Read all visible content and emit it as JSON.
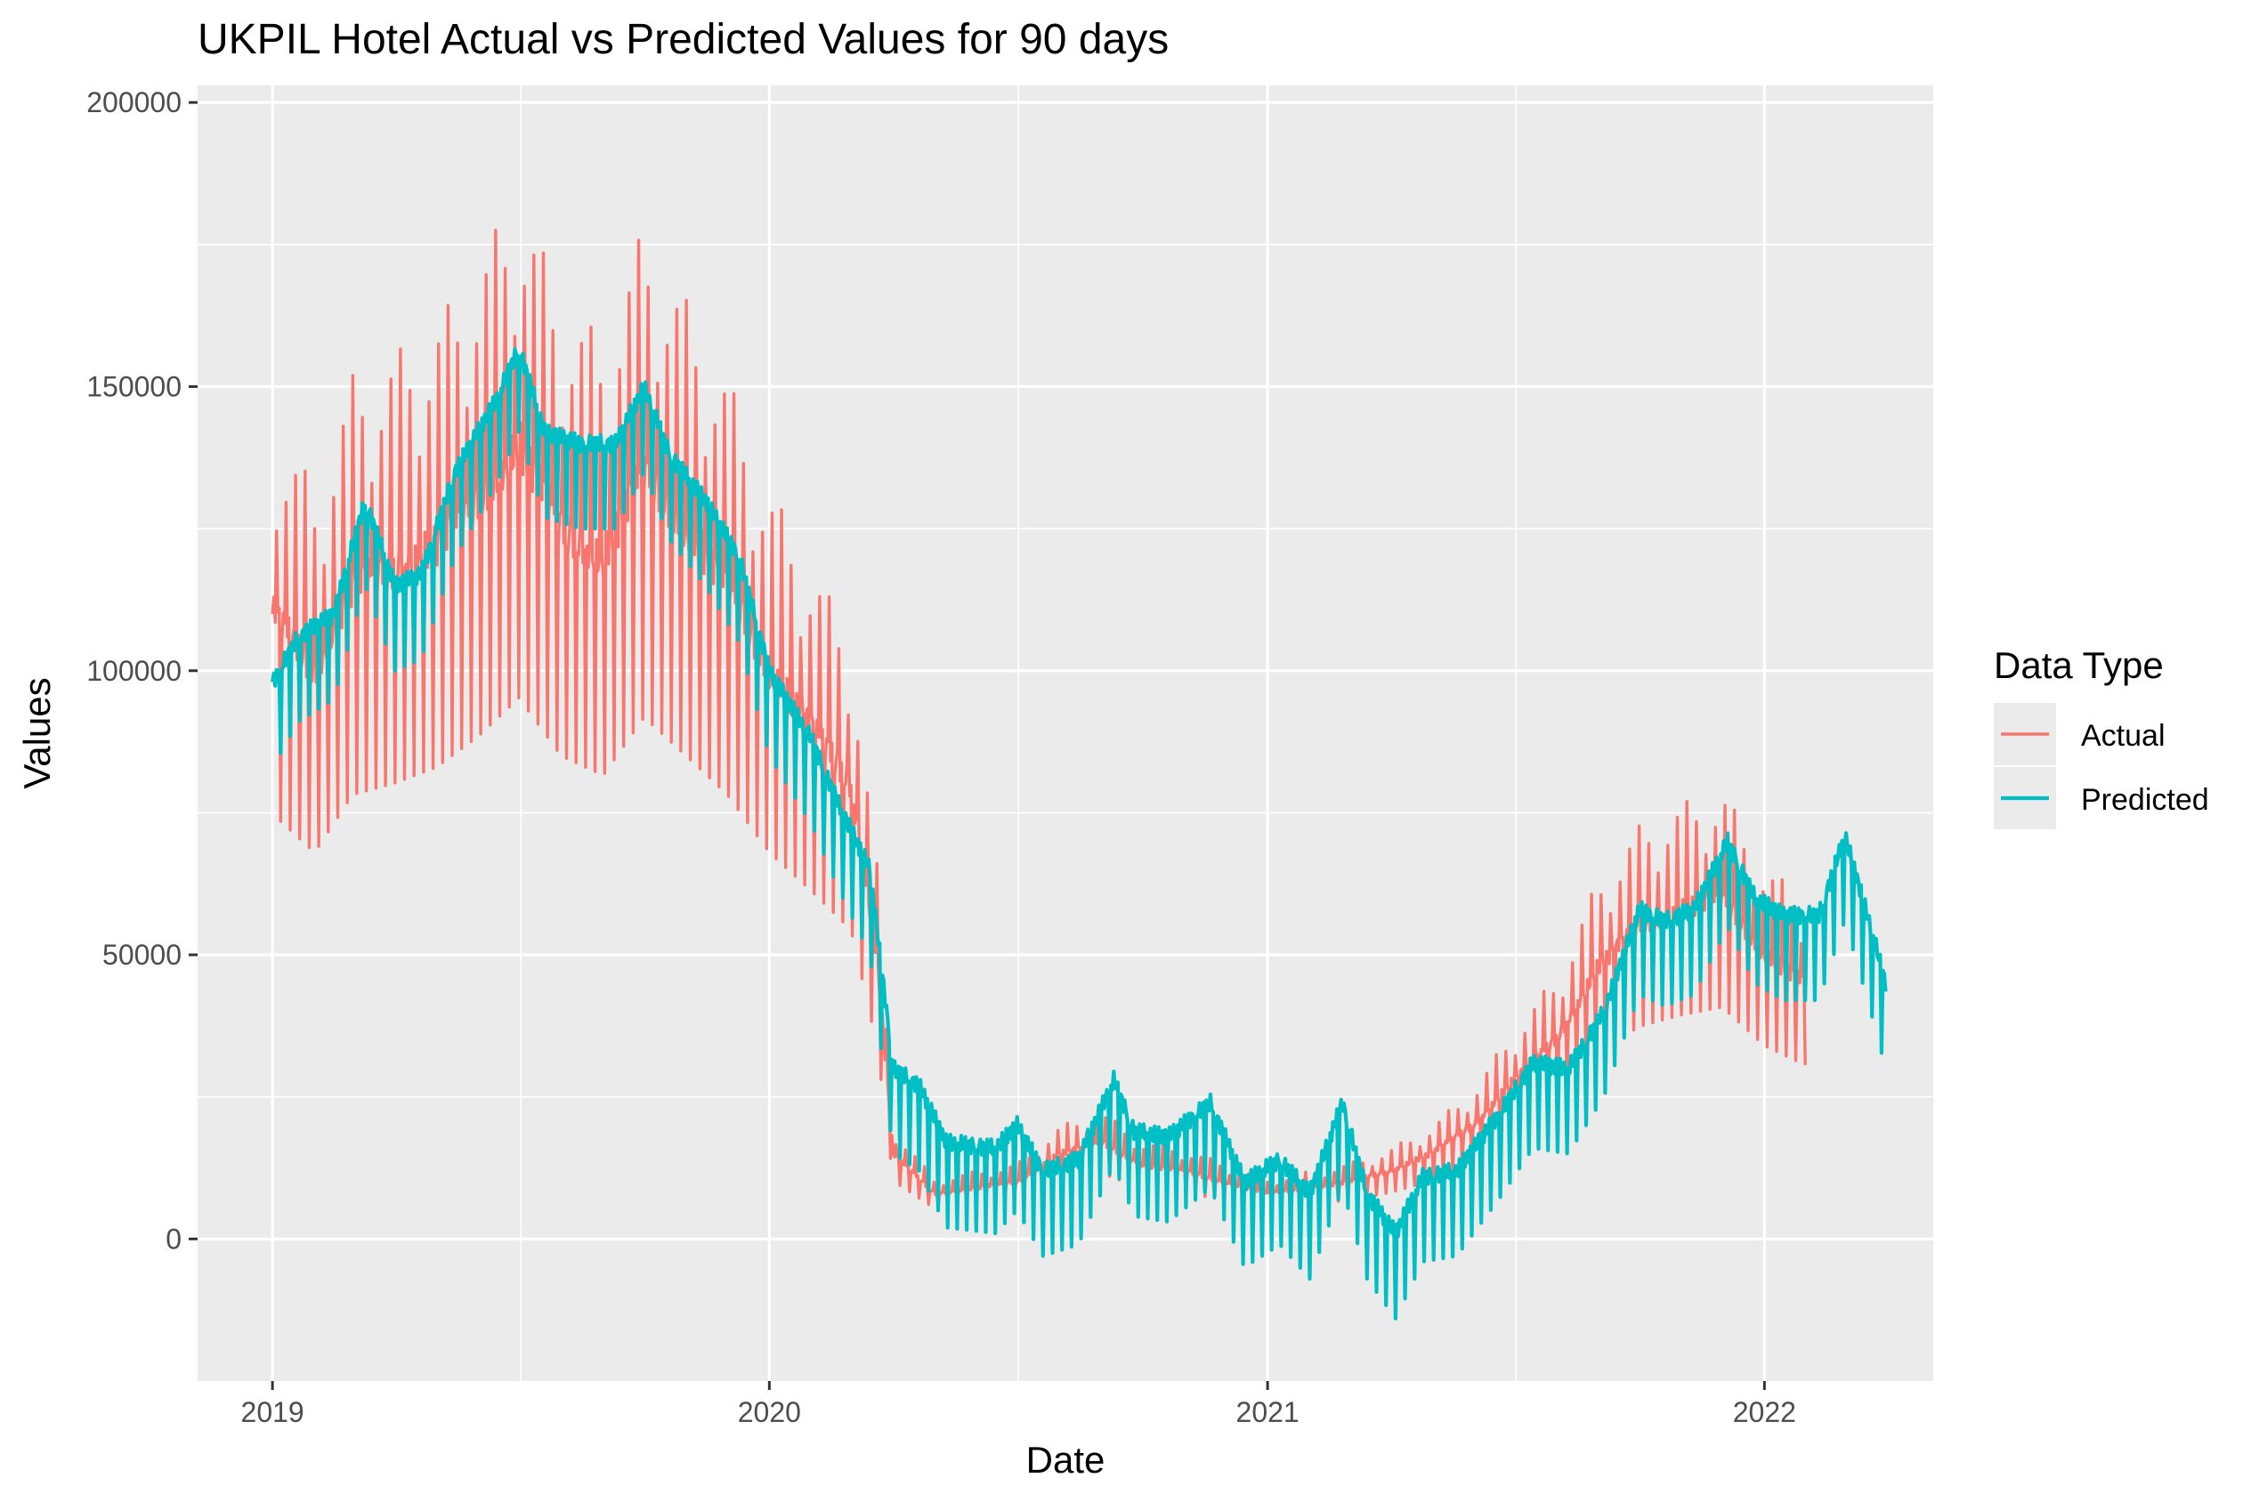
{
  "chart_data": {
    "type": "line",
    "title": "UKPIL Hotel Actual vs Predicted Values for 90 days",
    "xlabel": "Date",
    "ylabel": "Values",
    "x_range": [
      "2018-11-07",
      "2022-05-05"
    ],
    "ylim": [
      -25000,
      203000
    ],
    "x_ticks": [
      {
        "date": "2019-01-01",
        "label": "2019"
      },
      {
        "date": "2020-01-01",
        "label": "2020"
      },
      {
        "date": "2021-01-01",
        "label": "2021"
      },
      {
        "date": "2022-01-01",
        "label": "2022"
      }
    ],
    "y_ticks": [
      0,
      50000,
      100000,
      150000,
      200000
    ],
    "y_tick_labels": [
      "0",
      "50000",
      "100000",
      "150000",
      "200000"
    ],
    "grid": true,
    "panel_background": "#EBEBEB",
    "legend": {
      "title": "Data Type",
      "position": "right",
      "entries": [
        "Actual",
        "Predicted"
      ]
    },
    "series": [
      {
        "name": "Actual",
        "color": "#F8766D",
        "start": "2019-01-01",
        "end": "2022-01-31",
        "weekly_dip_depth": 0.32,
        "spike_every_days": 7,
        "spike_heights": [
          20000,
          30000,
          40000,
          45000,
          35000
        ],
        "level": [
          [
            "2019-01-01",
            110000
          ],
          [
            "2019-02-01",
            100000
          ],
          [
            "2019-03-01",
            115000
          ],
          [
            "2019-04-01",
            118000
          ],
          [
            "2019-05-01",
            122000
          ],
          [
            "2019-06-01",
            130000
          ],
          [
            "2019-07-01",
            140000
          ],
          [
            "2019-08-01",
            125000
          ],
          [
            "2019-09-01",
            120000
          ],
          [
            "2019-10-01",
            135000
          ],
          [
            "2019-11-01",
            125000
          ],
          [
            "2019-12-01",
            115000
          ],
          [
            "2020-01-01",
            100000
          ],
          [
            "2020-02-01",
            90000
          ],
          [
            "2020-03-01",
            80000
          ],
          [
            "2020-03-20",
            50000
          ],
          [
            "2020-04-01",
            15000
          ],
          [
            "2020-05-01",
            8000
          ],
          [
            "2020-06-01",
            9000
          ],
          [
            "2020-07-01",
            10000
          ],
          [
            "2020-08-01",
            15000
          ],
          [
            "2020-09-01",
            17000
          ],
          [
            "2020-10-01",
            13000
          ],
          [
            "2020-11-01",
            12000
          ],
          [
            "2020-12-01",
            10000
          ],
          [
            "2021-01-01",
            8000
          ],
          [
            "2021-02-01",
            9000
          ],
          [
            "2021-03-01",
            10000
          ],
          [
            "2021-04-01",
            12000
          ],
          [
            "2021-05-01",
            15000
          ],
          [
            "2021-06-01",
            20000
          ],
          [
            "2021-07-01",
            28000
          ],
          [
            "2021-08-01",
            35000
          ],
          [
            "2021-09-01",
            48000
          ],
          [
            "2021-10-01",
            55000
          ],
          [
            "2021-11-01",
            58000
          ],
          [
            "2021-12-01",
            60000
          ],
          [
            "2022-01-01",
            50000
          ],
          [
            "2022-01-31",
            45000
          ]
        ]
      },
      {
        "name": "Predicted",
        "color": "#00BFC4",
        "start": "2019-01-01",
        "end": "2022-03-31",
        "weekly_dip": 15000,
        "level": [
          [
            "2019-01-01",
            98000
          ],
          [
            "2019-01-20",
            106000
          ],
          [
            "2019-02-15",
            110000
          ],
          [
            "2019-03-10",
            130000
          ],
          [
            "2019-04-01",
            115000
          ],
          [
            "2019-04-20",
            117000
          ],
          [
            "2019-05-15",
            135000
          ],
          [
            "2019-06-15",
            148000
          ],
          [
            "2019-07-01",
            157000
          ],
          [
            "2019-07-20",
            142000
          ],
          [
            "2019-08-15",
            140000
          ],
          [
            "2019-09-10",
            140000
          ],
          [
            "2019-10-01",
            150000
          ],
          [
            "2019-10-20",
            138000
          ],
          [
            "2019-11-15",
            130000
          ],
          [
            "2019-12-10",
            120000
          ],
          [
            "2020-01-01",
            100000
          ],
          [
            "2020-02-01",
            88000
          ],
          [
            "2020-02-20",
            77000
          ],
          [
            "2020-03-15",
            65000
          ],
          [
            "2020-04-01",
            30000
          ],
          [
            "2020-04-20",
            27000
          ],
          [
            "2020-05-10",
            17000
          ],
          [
            "2020-06-15",
            16000
          ],
          [
            "2020-07-01",
            20000
          ],
          [
            "2020-07-20",
            12000
          ],
          [
            "2020-08-15",
            14000
          ],
          [
            "2020-09-10",
            28000
          ],
          [
            "2020-09-25",
            19000
          ],
          [
            "2020-10-20",
            18000
          ],
          [
            "2020-11-20",
            24000
          ],
          [
            "2020-12-15",
            10000
          ],
          [
            "2021-01-10",
            14000
          ],
          [
            "2021-02-01",
            8000
          ],
          [
            "2021-02-25",
            24000
          ],
          [
            "2021-03-15",
            8000
          ],
          [
            "2021-04-05",
            1000
          ],
          [
            "2021-04-25",
            11000
          ],
          [
            "2021-05-20",
            12000
          ],
          [
            "2021-06-20",
            22000
          ],
          [
            "2021-07-15",
            31000
          ],
          [
            "2021-08-10",
            30000
          ],
          [
            "2021-09-05",
            40000
          ],
          [
            "2021-10-01",
            58000
          ],
          [
            "2021-10-20",
            56000
          ],
          [
            "2021-11-10",
            58000
          ],
          [
            "2021-12-05",
            70000
          ],
          [
            "2021-12-25",
            60000
          ],
          [
            "2022-01-15",
            57000
          ],
          [
            "2022-02-10",
            57000
          ],
          [
            "2022-03-01",
            71000
          ],
          [
            "2022-03-20",
            55000
          ],
          [
            "2022-03-31",
            45000
          ]
        ]
      }
    ]
  }
}
